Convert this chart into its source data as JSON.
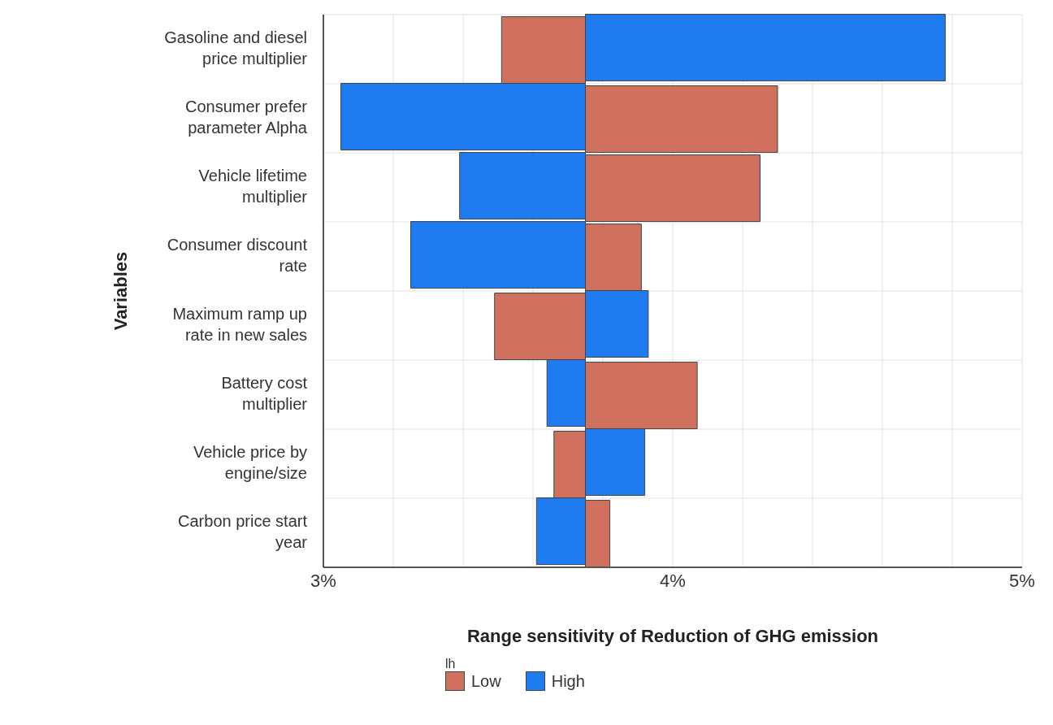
{
  "chart_data": {
    "type": "bar",
    "orientation": "horizontal",
    "xlabel": "Range sensitivity of Reduction of GHG emission",
    "ylabel": "Variables",
    "legend_title": "lh",
    "legend": "bottom",
    "grid": true,
    "categories": [
      "Gasoline and diesel price multiplier",
      "Consumer prefer parameter Alpha",
      "Vehicle lifetime multiplier",
      "Consumer discount rate",
      "Maximum ramp up rate in new sales",
      "Battery cost multiplier",
      "Vehicle price by engine/size",
      "Carbon price start year"
    ],
    "series": [
      {
        "name": "Low",
        "color": "#d0705f",
        "base": [
          3.75,
          3.75,
          3.75,
          3.75,
          3.75,
          3.75,
          3.75,
          3.75
        ],
        "values": [
          -0.24,
          0.55,
          0.5,
          0.16,
          -0.26,
          0.32,
          -0.09,
          0.07
        ]
      },
      {
        "name": "High",
        "color": "#1f7bf0",
        "base": [
          3.75,
          3.75,
          3.75,
          3.75,
          3.75,
          3.75,
          3.75,
          3.75
        ],
        "values": [
          1.03,
          -0.7,
          -0.36,
          -0.5,
          0.18,
          -0.11,
          0.17,
          -0.14
        ]
      }
    ],
    "xlim": [
      3,
      5
    ],
    "xticks": [
      {
        "value": 3,
        "label": "3%"
      },
      {
        "value": 3.2,
        "label": null
      },
      {
        "value": 3.4,
        "label": null
      },
      {
        "value": 3.6,
        "label": null
      },
      {
        "value": 3.8,
        "label": null
      },
      {
        "value": 4,
        "label": "4%"
      },
      {
        "value": 4.2,
        "label": null
      },
      {
        "value": 4.4,
        "label": null
      },
      {
        "value": 4.6,
        "label": null
      },
      {
        "value": 4.8,
        "label": null
      },
      {
        "value": 5,
        "label": "5%"
      }
    ]
  }
}
